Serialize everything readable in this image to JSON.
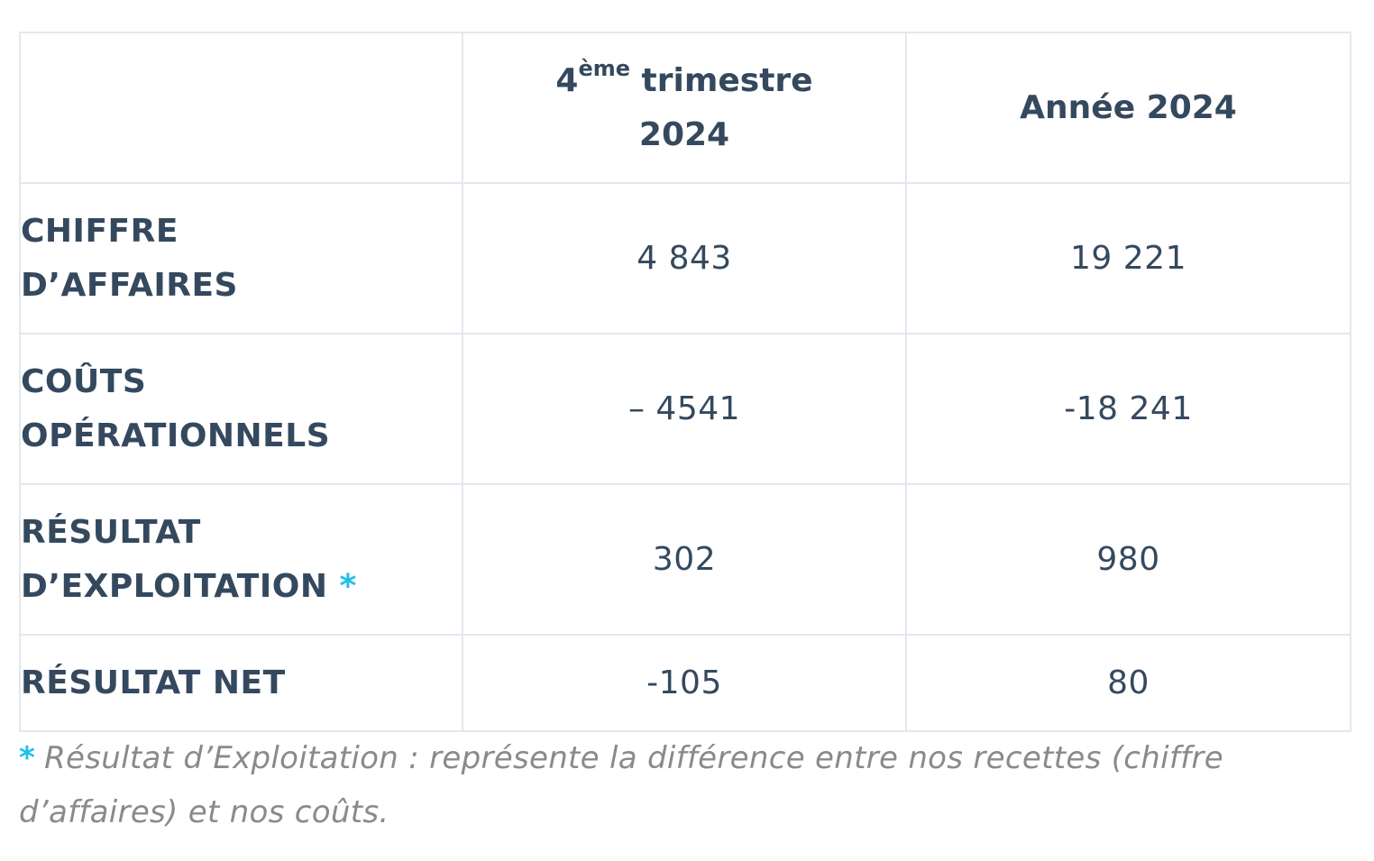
{
  "table": {
    "header": {
      "col1": "",
      "col2_prefix": "4",
      "col2_sup": "ème",
      "col2_suffix": " trimestre",
      "col2_line2": "2024",
      "col3": "Année 2024"
    },
    "rows": [
      {
        "label_line1": "CHIFFRE",
        "label_line2": "D’AFFAIRES",
        "q4": "4 843",
        "year": "19 221"
      },
      {
        "label_line1": "COÛTS",
        "label_line2": "OPÉRATIONNELS",
        "q4": "– 4541",
        "year": "-18 241"
      },
      {
        "label_line1": "RÉSULTAT",
        "label_line2": "D’EXPLOITATION",
        "marker": "*",
        "q4": "302",
        "year": "980"
      },
      {
        "label_line1": "RÉSULTAT NET",
        "q4": "-105",
        "year": "80"
      }
    ]
  },
  "footnote": {
    "marker": "*",
    "text": "Résultat d’Exploitation : représente la différence entre nos recettes (chiffre d’affaires) et nos coûts."
  },
  "colors": {
    "text": "#34495e",
    "accent": "#1ec0ea",
    "border": "#e3e8ee",
    "note": "#8a8a8a"
  }
}
